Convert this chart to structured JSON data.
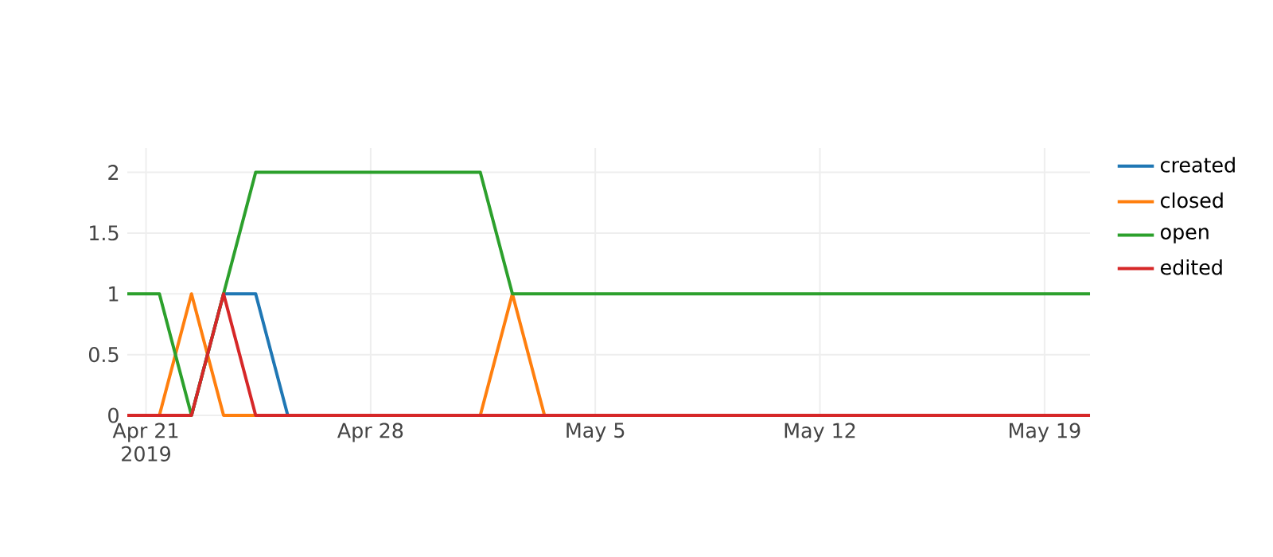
{
  "chart_data": {
    "type": "line",
    "x": [
      "2019-04-20T10:00",
      "2019-04-21T10:00",
      "2019-04-22T10:00",
      "2019-04-23T10:00",
      "2019-04-24T10:00",
      "2019-04-25T10:00",
      "2019-04-26T10:00",
      "2019-04-27T10:00",
      "2019-04-28T10:00",
      "2019-04-29T10:00",
      "2019-04-30T10:00",
      "2019-05-01T10:00",
      "2019-05-02T10:00",
      "2019-05-03T10:00",
      "2019-05-04T10:00",
      "2019-05-05T10:00",
      "2019-05-06T10:00",
      "2019-05-07T10:00",
      "2019-05-08T10:00",
      "2019-05-09T10:00",
      "2019-05-10T10:00",
      "2019-05-11T10:00",
      "2019-05-12T10:00",
      "2019-05-13T10:00",
      "2019-05-14T10:00",
      "2019-05-15T10:00",
      "2019-05-16T10:00",
      "2019-05-17T10:00",
      "2019-05-18T10:00",
      "2019-05-19T10:00",
      "2019-05-20T10:00"
    ],
    "series": [
      {
        "name": "created",
        "color": "#1f77b4",
        "values": [
          null,
          null,
          0,
          1,
          1,
          0,
          null,
          null,
          null,
          null,
          null,
          null,
          null,
          null,
          null,
          null,
          null,
          null,
          null,
          null,
          null,
          null,
          null,
          null,
          null,
          null,
          null,
          null,
          null,
          null,
          null
        ]
      },
      {
        "name": "closed",
        "color": "#ff7f0e",
        "values": [
          null,
          0,
          1,
          0,
          0,
          null,
          null,
          null,
          null,
          null,
          null,
          0,
          1,
          0,
          null,
          null,
          null,
          null,
          null,
          null,
          null,
          null,
          null,
          null,
          null,
          null,
          null,
          null,
          null,
          null,
          null
        ]
      },
      {
        "name": "open",
        "color": "#2ca02c",
        "values": [
          1,
          1,
          0,
          1,
          2,
          2,
          2,
          2,
          2,
          2,
          2,
          2,
          1,
          1,
          1,
          1,
          1,
          1,
          1,
          1,
          1,
          1,
          1,
          1,
          1,
          1,
          1,
          1,
          1,
          1,
          1
        ]
      },
      {
        "name": "edited",
        "color": "#d62728",
        "values": [
          0,
          0,
          0,
          1,
          0,
          0,
          0,
          0,
          0,
          0,
          0,
          0,
          0,
          0,
          0,
          0,
          0,
          0,
          0,
          0,
          0,
          0,
          0,
          0,
          0,
          0,
          0,
          0,
          0,
          0,
          0
        ]
      }
    ],
    "xlim": [
      "2019-04-20T10:00",
      "2019-05-20T10:00"
    ],
    "xticks": [
      {
        "value": "2019-04-21",
        "label": "Apr 21\n2019"
      },
      {
        "value": "2019-04-28",
        "label": "Apr 28"
      },
      {
        "value": "2019-05-05",
        "label": "May 5"
      },
      {
        "value": "2019-05-12",
        "label": "May 12"
      },
      {
        "value": "2019-05-19",
        "label": "May 19"
      }
    ],
    "ylim": [
      0,
      2.2
    ],
    "yticks": [
      0,
      0.5,
      1,
      1.5,
      2
    ],
    "grid": true,
    "legend": "top right",
    "marker": "none",
    "line_style": "solid"
  }
}
